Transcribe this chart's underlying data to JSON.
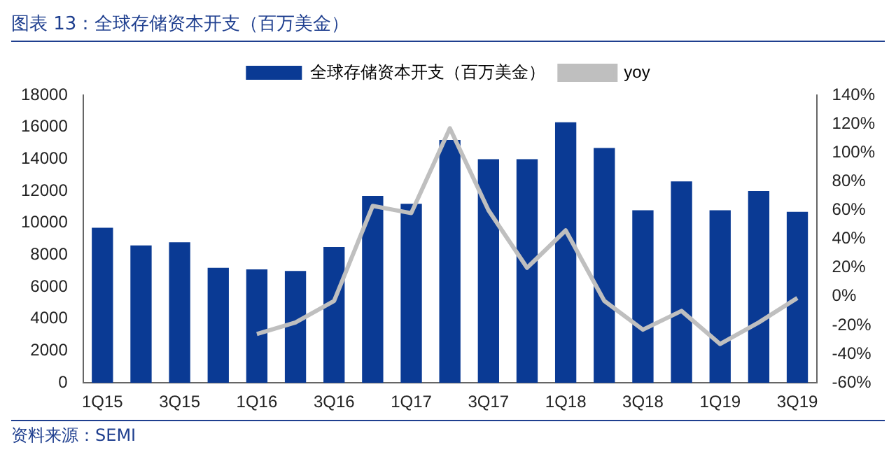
{
  "chart_data": {
    "type": "bar",
    "title": "图表 13：全球存储资本开支（百万美金）",
    "categories": [
      "1Q15",
      null,
      "3Q15",
      null,
      "1Q16",
      null,
      "3Q16",
      null,
      "1Q17",
      null,
      "3Q17",
      null,
      "1Q18",
      null,
      "3Q18",
      null,
      "1Q19",
      null,
      "3Q19"
    ],
    "series": [
      {
        "name": "全球存储资本开支（百万美金）",
        "color": "#0a3a94",
        "values": [
          9700,
          8600,
          8800,
          7200,
          7100,
          7000,
          8500,
          11700,
          11200,
          15200,
          14000,
          14000,
          16300,
          14700,
          10800,
          12600,
          10800,
          12000,
          10700
        ]
      },
      {
        "name": "yoy",
        "type": "line",
        "axis": "y2",
        "color": "#bfbfbf",
        "values": [
          null,
          null,
          null,
          null,
          -26,
          -18,
          -3,
          63,
          58,
          117,
          60,
          20,
          46,
          -3,
          -23,
          -10,
          -33,
          -18,
          -1
        ]
      }
    ],
    "ylim": [
      0,
      18000
    ],
    "yticks": [
      0,
      2000,
      4000,
      6000,
      8000,
      10000,
      12000,
      14000,
      16000,
      18000
    ],
    "y2lim": [
      -60,
      140
    ],
    "y2ticks": [
      {
        "value": -60,
        "label": "-60%"
      },
      {
        "value": -40,
        "label": "-40%"
      },
      {
        "value": -20,
        "label": "-20%"
      },
      {
        "value": 0,
        "label": "0%"
      },
      {
        "value": 20,
        "label": "20%"
      },
      {
        "value": 40,
        "label": "40%"
      },
      {
        "value": 60,
        "label": "60%"
      },
      {
        "value": 80,
        "label": "80%"
      },
      {
        "value": 100,
        "label": "100%"
      },
      {
        "value": 120,
        "label": "120%"
      },
      {
        "value": 140,
        "label": "140%"
      }
    ],
    "grid": false,
    "legend": "top",
    "marker": "none",
    "line_style": "solid",
    "annotations": [
      "资料来源：SEMI"
    ]
  }
}
